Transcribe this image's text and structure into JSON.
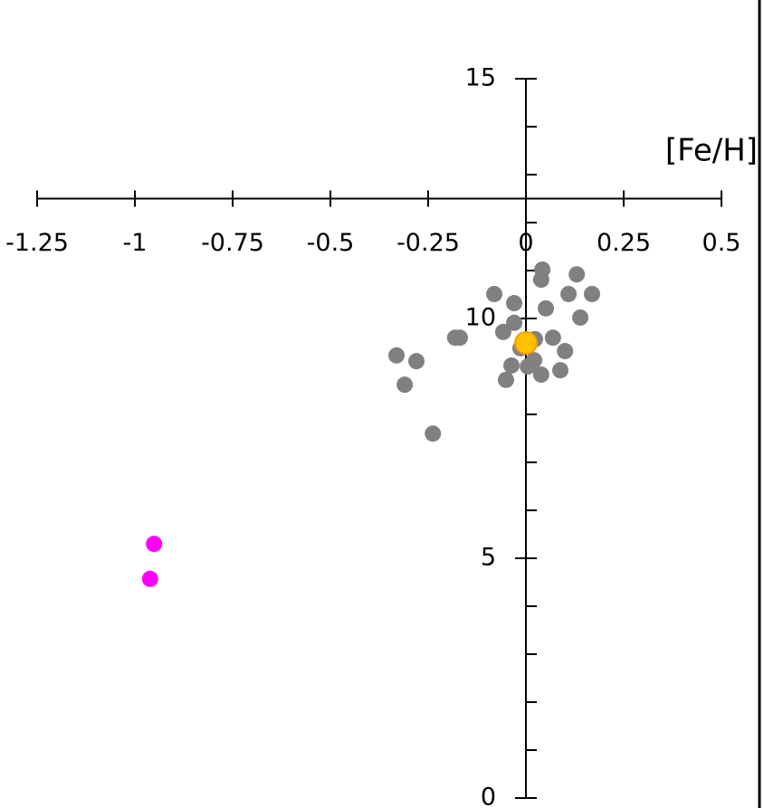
{
  "chart_data": {
    "type": "scatter",
    "x_label": "[Fe/H]",
    "xlim": [
      -1.25,
      0.5
    ],
    "xticks": [
      -1.25,
      -1,
      -0.75,
      -0.5,
      -0.25,
      0,
      0.25,
      0.5
    ],
    "ylim": [
      0,
      15
    ],
    "yticks": [
      0,
      5,
      10,
      15
    ],
    "yminorticks": [
      1,
      2,
      3,
      4,
      6,
      7,
      8,
      9,
      11,
      12,
      13,
      14
    ],
    "x_axis_crosses_at": 12.5,
    "series": [
      {
        "color": "#808080",
        "x": [
          0.042,
          0.039,
          0.13,
          -0.081,
          -0.03,
          0.109,
          0.169,
          0.051,
          0.139,
          -0.03,
          -0.058,
          -0.181,
          -0.169,
          0.069,
          0.023,
          0.1,
          -0.331,
          -0.28,
          -0.014,
          0.021,
          -0.037,
          0.005,
          0.088,
          0.039,
          -0.051,
          -0.31,
          -0.238
        ],
        "values": [
          11.02,
          10.81,
          10.92,
          10.51,
          10.32,
          10.51,
          10.51,
          10.21,
          10.02,
          9.91,
          9.72,
          9.6,
          9.6,
          9.6,
          9.57,
          9.32,
          9.23,
          9.11,
          9.38,
          9.13,
          9.02,
          9.0,
          8.92,
          8.83,
          8.72,
          8.62,
          7.6
        ]
      },
      {
        "color": "#ff00ff",
        "x": [
          -0.951,
          -0.961
        ],
        "values": [
          5.3,
          4.57
        ]
      },
      {
        "color": "#ffc000",
        "x": [
          0.0
        ],
        "values": [
          9.49
        ]
      }
    ]
  }
}
